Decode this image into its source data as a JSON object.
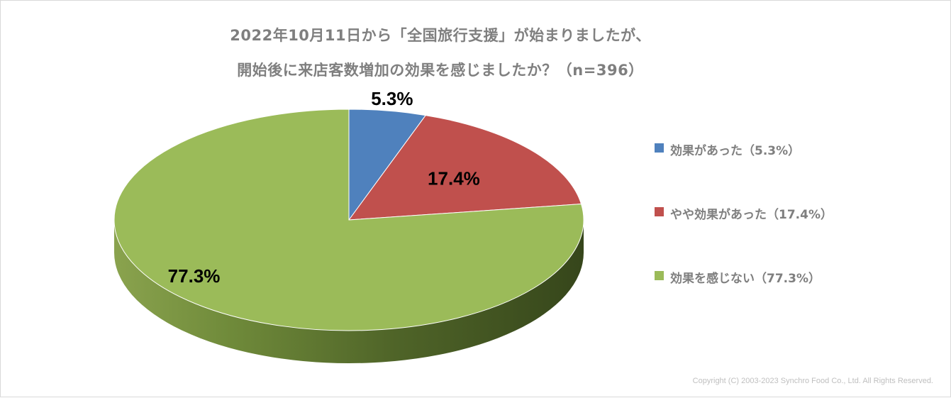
{
  "chart_title": {
    "line1": "2022年10月11日から「全国旅行支援」が始まりましたが、",
    "line2": "開始後に来店客数増加の効果を感じましたか？（n=396）"
  },
  "chart_data": {
    "type": "pie",
    "style": "3d",
    "start": "12 o'clock, clockwise",
    "slices": [
      {
        "name": "効果があった",
        "value": 5.3,
        "label": "5.3%",
        "legend": "効果があった（5.3%）",
        "color": "#4f81bd"
      },
      {
        "name": "やや効果があった",
        "value": 17.4,
        "label": "17.4%",
        "legend": "やや効果があった（17.4%）",
        "color": "#c0504d"
      },
      {
        "name": "効果を感じない",
        "value": 77.3,
        "label": "77.3%",
        "legend": "効果を感じない（77.3%）",
        "color": "#9bbb59"
      }
    ],
    "legend_position": "right"
  },
  "copyright": "Copyright (C) 2003-2023 Synchro Food Co., Ltd. All Rights Reserved."
}
